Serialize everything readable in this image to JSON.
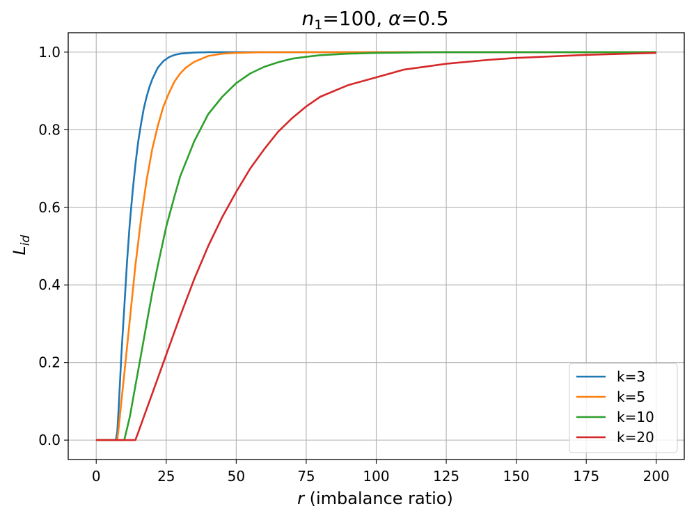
{
  "chart_data": {
    "type": "line",
    "title": {
      "n_symbol": "n",
      "n_subscript": "1",
      "n_value": "=100, ",
      "alpha_symbol": "α",
      "alpha_value": "=0.5"
    },
    "xlabel": {
      "symbol": "r",
      "text": " (imbalance ratio)"
    },
    "ylabel": {
      "symbol": "L",
      "subscript": "id"
    },
    "xlim": [
      -10,
      210
    ],
    "ylim": [
      -0.05,
      1.05
    ],
    "xticks": [
      0,
      25,
      50,
      75,
      100,
      125,
      150,
      175,
      200
    ],
    "xtick_labels": [
      "0",
      "25",
      "50",
      "75",
      "100",
      "125",
      "150",
      "175",
      "200"
    ],
    "yticks": [
      0.0,
      0.2,
      0.4,
      0.6,
      0.8,
      1.0
    ],
    "ytick_labels": [
      "0.0",
      "0.2",
      "0.4",
      "0.6",
      "0.8",
      "1.0"
    ],
    "grid": true,
    "legend_position": "lower-right",
    "series": [
      {
        "name": "k=3",
        "color": "#1f77b4",
        "x": [
          0,
          7,
          7.5,
          8,
          8.5,
          9,
          9.5,
          10,
          11,
          12,
          13,
          14,
          15,
          16,
          17,
          18,
          19,
          20,
          22,
          24,
          26,
          28,
          30,
          35,
          40,
          50,
          75,
          100,
          150,
          200
        ],
        "y": [
          0,
          0,
          0.02,
          0.08,
          0.15,
          0.22,
          0.28,
          0.34,
          0.46,
          0.56,
          0.64,
          0.71,
          0.77,
          0.815,
          0.855,
          0.885,
          0.91,
          0.93,
          0.96,
          0.977,
          0.987,
          0.993,
          0.996,
          0.999,
          1.0,
          1.0,
          1.0,
          1.0,
          1.0,
          1.0
        ]
      },
      {
        "name": "k=5",
        "color": "#ff7f0e",
        "x": [
          0,
          7.5,
          8,
          9,
          10,
          11,
          12,
          13,
          14,
          15,
          16,
          18,
          20,
          22,
          24,
          26,
          28,
          30,
          32,
          35,
          40,
          45,
          50,
          60,
          75,
          100,
          150,
          200
        ],
        "y": [
          0,
          0,
          0.03,
          0.1,
          0.17,
          0.24,
          0.31,
          0.38,
          0.45,
          0.51,
          0.57,
          0.67,
          0.75,
          0.81,
          0.86,
          0.895,
          0.925,
          0.945,
          0.96,
          0.975,
          0.99,
          0.996,
          0.998,
          1.0,
          1.0,
          1.0,
          1.0,
          1.0
        ]
      },
      {
        "name": "k=10",
        "color": "#2ca02c",
        "x": [
          0,
          10,
          11,
          12,
          14,
          16,
          18,
          20,
          22,
          25,
          28,
          30,
          35,
          40,
          45,
          50,
          55,
          60,
          65,
          70,
          75,
          80,
          90,
          100,
          125,
          150,
          200
        ],
        "y": [
          0,
          0,
          0.03,
          0.06,
          0.14,
          0.22,
          0.3,
          0.38,
          0.45,
          0.55,
          0.63,
          0.68,
          0.77,
          0.84,
          0.885,
          0.92,
          0.945,
          0.962,
          0.974,
          0.983,
          0.988,
          0.992,
          0.996,
          0.998,
          1.0,
          1.0,
          1.0
        ]
      },
      {
        "name": "k=20",
        "color": "#d62728",
        "x": [
          0,
          14,
          15,
          17,
          20,
          25,
          30,
          35,
          40,
          45,
          50,
          55,
          60,
          65,
          70,
          75,
          80,
          90,
          100,
          110,
          125,
          140,
          150,
          175,
          200
        ],
        "y": [
          0,
          0,
          0.02,
          0.06,
          0.12,
          0.22,
          0.32,
          0.415,
          0.5,
          0.575,
          0.64,
          0.7,
          0.75,
          0.795,
          0.83,
          0.86,
          0.885,
          0.915,
          0.935,
          0.955,
          0.97,
          0.98,
          0.985,
          0.993,
          0.998
        ]
      }
    ]
  }
}
